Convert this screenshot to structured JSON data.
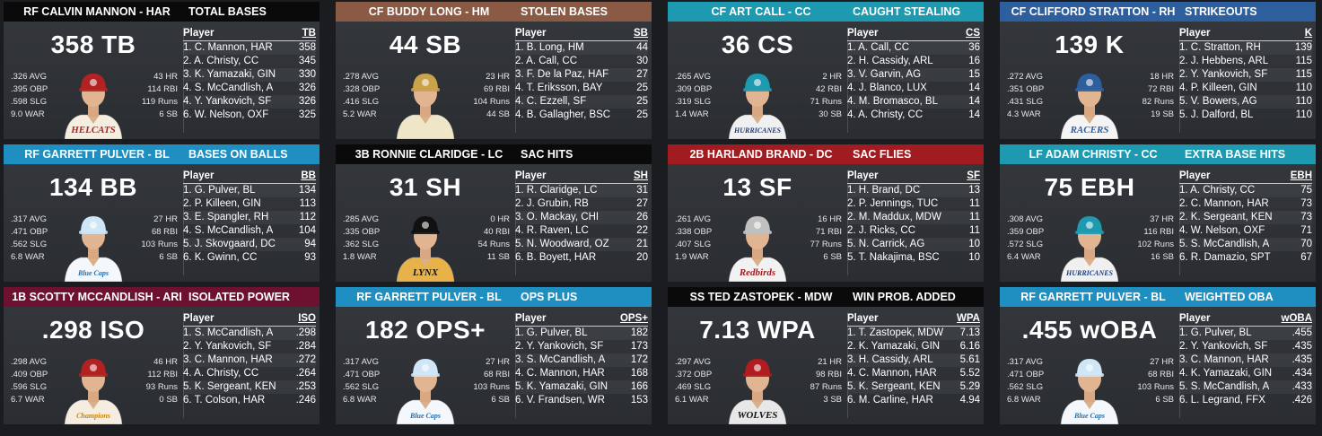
{
  "cards": [
    {
      "name": "RF CALVIN MANNON - HAR",
      "stat": "TOTAL BASES",
      "hcolor": "#0a0a0a",
      "value": "358 TB",
      "left": [
        ".326 AVG",
        ".395 OBP",
        ".598 SLG",
        "9.0 WAR"
      ],
      "right": [
        "43 HR",
        "114 RBI",
        "119 Runs",
        "6 SB"
      ],
      "col": "TB",
      "jersey": "HELCATS",
      "cap": "#b22222",
      "shirt": "#f4ede0",
      "text": "#b22222",
      "rows": [
        [
          "1. C. Mannon, HAR",
          "358"
        ],
        [
          "2. A. Christy, CC",
          "345"
        ],
        [
          "3. K. Yamazaki, GIN",
          "330"
        ],
        [
          "4. S. McCandlish, A",
          "326"
        ],
        [
          "4. Y. Yankovich, SF",
          "326"
        ],
        [
          "6. W. Nelson, OXF",
          "325"
        ]
      ]
    },
    {
      "name": "CF BUDDY LONG - HM",
      "stat": "STOLEN BASES",
      "hcolor": "#8a5a44",
      "value": "44 SB",
      "left": [
        ".278 AVG",
        ".328 OBP",
        ".416 SLG",
        "5.2 WAR"
      ],
      "right": [
        "23 HR",
        "69 RBI",
        "104 Runs",
        "44 SB"
      ],
      "col": "SB",
      "jersey": "",
      "cap": "#c9a24a",
      "shirt": "#efe6c8",
      "text": "#6b4e1e",
      "rows": [
        [
          "1. B. Long, HM",
          "44"
        ],
        [
          "2. A. Call, CC",
          "30"
        ],
        [
          "3. F. De la Paz, HAF",
          "27"
        ],
        [
          "4. T. Eriksson, BAY",
          "25"
        ],
        [
          "4. C. Ezzell, SF",
          "25"
        ],
        [
          "4. B. Gallagher, BSC",
          "25"
        ]
      ]
    },
    {
      "name": "CF ART CALL - CC",
      "stat": "CAUGHT STEALING",
      "hcolor": "#1e9ab0",
      "value": "36 CS",
      "left": [
        ".265 AVG",
        ".309 OBP",
        ".319 SLG",
        "1.4 WAR"
      ],
      "right": [
        "2 HR",
        "42 RBI",
        "71 Runs",
        "30 SB"
      ],
      "col": "CS",
      "jersey": "HURRICANES",
      "cap": "#1e9ab0",
      "shirt": "#f0f0f0",
      "text": "#1b3c80",
      "rows": [
        [
          "1. A. Call, CC",
          "36"
        ],
        [
          "2. H. Cassidy, ARL",
          "16"
        ],
        [
          "3. V. Garvin, AG",
          "15"
        ],
        [
          "4. J. Blanco, LUX",
          "14"
        ],
        [
          "4. M. Bromasco, BL",
          "14"
        ],
        [
          "4. A. Christy, CC",
          "14"
        ]
      ]
    },
    {
      "name": "CF CLIFFORD STRATTON - RH",
      "stat": "STRIKEOUTS",
      "hcolor": "#2d5e9e",
      "value": "139 K",
      "left": [
        ".272 AVG",
        ".351 OBP",
        ".431 SLG",
        "4.3 WAR"
      ],
      "right": [
        "18 HR",
        "72 RBI",
        "82 Runs",
        "19 SB"
      ],
      "col": "K",
      "jersey": "RACERS",
      "cap": "#2d5e9e",
      "shirt": "#f4f4f4",
      "text": "#2d5e9e",
      "rows": [
        [
          "1. C. Stratton, RH",
          "139"
        ],
        [
          "2. J. Hebbens, ARL",
          "115"
        ],
        [
          "2. Y. Yankovich, SF",
          "115"
        ],
        [
          "4. P. Killeen, GIN",
          "110"
        ],
        [
          "5. V. Bowers, AG",
          "110"
        ],
        [
          "5. J. Dalford, BL",
          "110"
        ]
      ]
    },
    {
      "name": "RF GARRETT PULVER - BL",
      "stat": "BASES ON BALLS",
      "hcolor": "#1e8fc0",
      "value": "134 BB",
      "left": [
        ".317 AVG",
        ".471 OBP",
        ".562 SLG",
        "6.8 WAR"
      ],
      "right": [
        "27 HR",
        "68 RBI",
        "103 Runs",
        "6 SB"
      ],
      "col": "BB",
      "jersey": "Blue Caps",
      "cap": "#cfe6f6",
      "shirt": "#f4f8fc",
      "text": "#1e6fb0",
      "rows": [
        [
          "1. G. Pulver, BL",
          "134"
        ],
        [
          "2. P. Killeen, GIN",
          "113"
        ],
        [
          "3. E. Spangler, RH",
          "112"
        ],
        [
          "4. S. McCandlish, A",
          "104"
        ],
        [
          "5. J. Skovgaard, DC",
          "94"
        ],
        [
          "6. K. Gwinn, CC",
          "93"
        ]
      ]
    },
    {
      "name": "3B RONNIE CLARIDGE - LC",
      "stat": "SAC HITS",
      "hcolor": "#0a0a0a",
      "value": "31 SH",
      "left": [
        ".285 AVG",
        ".335 OBP",
        ".362 SLG",
        "1.8 WAR"
      ],
      "right": [
        "0 HR",
        "40 RBI",
        "54 Runs",
        "11 SB"
      ],
      "col": "SH",
      "jersey": "LYNX",
      "cap": "#111111",
      "shirt": "#e8b24a",
      "text": "#111111",
      "rows": [
        [
          "1. R. Claridge, LC",
          "31"
        ],
        [
          "2. J. Grubin, RB",
          "27"
        ],
        [
          "3. O. Mackay, CHI",
          "26"
        ],
        [
          "4. R. Raven, LC",
          "22"
        ],
        [
          "5. N. Woodward, OZ",
          "21"
        ],
        [
          "6. B. Boyett, HAR",
          "20"
        ]
      ]
    },
    {
      "name": "2B HARLAND BRAND - DC",
      "stat": "SAC FLIES",
      "hcolor": "#a01c20",
      "value": "13 SF",
      "left": [
        ".261 AVG",
        ".338 OBP",
        ".407 SLG",
        "1.9 WAR"
      ],
      "right": [
        "16 HR",
        "71 RBI",
        "77 Runs",
        "6 SB"
      ],
      "col": "SF",
      "jersey": "Redbirds",
      "cap": "#c0c0c0",
      "shirt": "#f2f2f2",
      "text": "#a01c20",
      "rows": [
        [
          "1. H. Brand, DC",
          "13"
        ],
        [
          "2. P. Jennings, TUC",
          "11"
        ],
        [
          "2. M. Maddux, MDW",
          "11"
        ],
        [
          "2. J. Ricks, CC",
          "11"
        ],
        [
          "5. N. Carrick, AG",
          "10"
        ],
        [
          "5. T. Nakajima, BSC",
          "10"
        ]
      ]
    },
    {
      "name": "LF ADAM CHRISTY - CC",
      "stat": "EXTRA BASE HITS",
      "hcolor": "#1e9ab0",
      "value": "75 EBH",
      "left": [
        ".308 AVG",
        ".359 OBP",
        ".572 SLG",
        "6.4 WAR"
      ],
      "right": [
        "37 HR",
        "116 RBI",
        "102 Runs",
        "16 SB"
      ],
      "col": "EBH",
      "jersey": "HURRICANES",
      "cap": "#1e9ab0",
      "shirt": "#f0f0f0",
      "text": "#1b3c80",
      "rows": [
        [
          "1. A. Christy, CC",
          "75"
        ],
        [
          "2. C. Mannon, HAR",
          "73"
        ],
        [
          "2. K. Sergeant, KEN",
          "73"
        ],
        [
          "4. W. Nelson, OXF",
          "71"
        ],
        [
          "5. S. McCandlish, A",
          "70"
        ],
        [
          "6. R. Damazio, SPT",
          "67"
        ]
      ]
    },
    {
      "name": "1B SCOTTY MCCANDLISH - ARI",
      "stat": "ISOLATED POWER",
      "hcolor": "#6e1030",
      "value": ".298 ISO",
      "left": [
        ".298 AVG",
        ".409 OBP",
        ".596 SLG",
        "6.7 WAR"
      ],
      "right": [
        "46 HR",
        "112 RBI",
        "93 Runs",
        "0 SB"
      ],
      "col": "ISO",
      "jersey": "Champions",
      "cap": "#b22222",
      "shirt": "#f4ede0",
      "text": "#c8860a",
      "rows": [
        [
          "1. S. McCandlish, A",
          ".298"
        ],
        [
          "2. Y. Yankovich, SF",
          ".284"
        ],
        [
          "3. C. Mannon, HAR",
          ".272"
        ],
        [
          "4. A. Christy, CC",
          ".264"
        ],
        [
          "5. K. Sergeant, KEN",
          ".253"
        ],
        [
          "6. T. Colson, HAR",
          ".246"
        ]
      ]
    },
    {
      "name": "RF GARRETT PULVER - BL",
      "stat": "OPS PLUS",
      "hcolor": "#1e8fc0",
      "value": "182 OPS+",
      "left": [
        ".317 AVG",
        ".471 OBP",
        ".562 SLG",
        "6.8 WAR"
      ],
      "right": [
        "27 HR",
        "68 RBI",
        "103 Runs",
        "6 SB"
      ],
      "col": "OPS+",
      "jersey": "Blue Caps",
      "cap": "#cfe6f6",
      "shirt": "#f4f8fc",
      "text": "#1e6fb0",
      "rows": [
        [
          "1. G. Pulver, BL",
          "182"
        ],
        [
          "2. Y. Yankovich, SF",
          "173"
        ],
        [
          "3. S. McCandlish, A",
          "172"
        ],
        [
          "4. C. Mannon, HAR",
          "168"
        ],
        [
          "5. K. Yamazaki, GIN",
          "166"
        ],
        [
          "6. V. Frandsen, WR",
          "153"
        ]
      ]
    },
    {
      "name": "SS TED ZASTOPEK - MDW",
      "stat": "WIN PROB. ADDED",
      "hcolor": "#0a0a0a",
      "value": "7.13 WPA",
      "left": [
        ".297 AVG",
        ".372 OBP",
        ".469 SLG",
        "6.1 WAR"
      ],
      "right": [
        "21 HR",
        "98 RBI",
        "87 Runs",
        "3 SB"
      ],
      "col": "WPA",
      "jersey": "WOLVES",
      "cap": "#b01c20",
      "shirt": "#e8e8e8",
      "text": "#111111",
      "rows": [
        [
          "1. T. Zastopek, MDW",
          "7.13"
        ],
        [
          "2. K. Yamazaki, GIN",
          "6.16"
        ],
        [
          "3. H. Cassidy, ARL",
          "5.61"
        ],
        [
          "4. C. Mannon, HAR",
          "5.52"
        ],
        [
          "5. K. Sergeant, KEN",
          "5.29"
        ],
        [
          "6. M. Carline, HAR",
          "4.94"
        ]
      ]
    },
    {
      "name": "RF GARRETT PULVER - BL",
      "stat": "WEIGHTED OBA",
      "hcolor": "#1e8fc0",
      "value": ".455 wOBA",
      "left": [
        ".317 AVG",
        ".471 OBP",
        ".562 SLG",
        "6.8 WAR"
      ],
      "right": [
        "27 HR",
        "68 RBI",
        "103 Runs",
        "6 SB"
      ],
      "col": "wOBA",
      "jersey": "Blue Caps",
      "cap": "#cfe6f6",
      "shirt": "#f4f8fc",
      "text": "#1e6fb0",
      "rows": [
        [
          "1. G. Pulver, BL",
          ".455"
        ],
        [
          "2. Y. Yankovich, SF",
          ".435"
        ],
        [
          "3. C. Mannon, HAR",
          ".435"
        ],
        [
          "4. K. Yamazaki, GIN",
          ".434"
        ],
        [
          "5. S. McCandlish, A",
          ".433"
        ],
        [
          "6. L. Legrand, FFX",
          ".426"
        ]
      ]
    }
  ],
  "table_header_label": "Player"
}
